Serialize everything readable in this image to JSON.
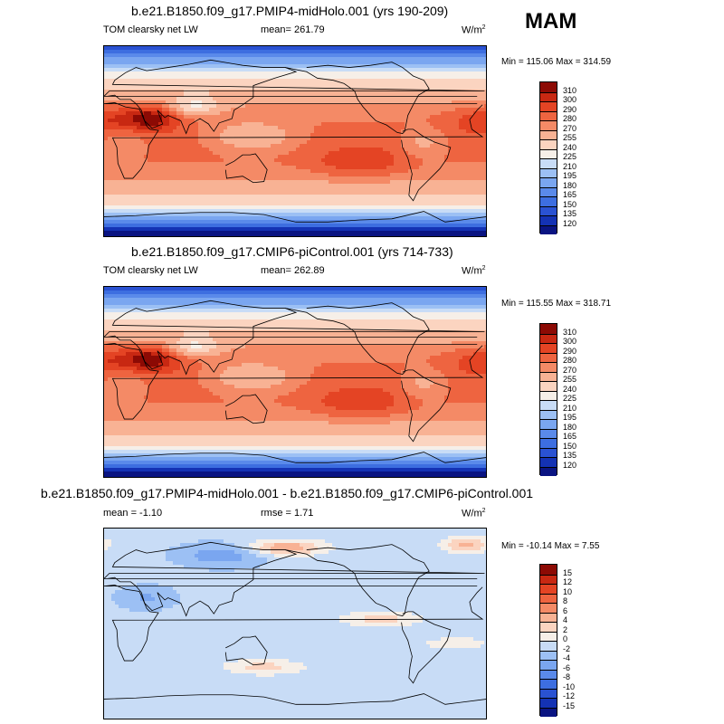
{
  "season": "MAM",
  "units_base": "W/m",
  "units_exp": "2",
  "panels": [
    {
      "title": "b.e21.B1850.f09_g17.PMIP4-midHolo.001 (yrs 190-209)",
      "left_label": "TOM clearsky net LW",
      "mid_label": "mean= 261.79",
      "minmax": "Min = 115.06 Max = 314.59"
    },
    {
      "title": "b.e21.B1850.f09_g17.CMIP6-piControl.001 (yrs 714-733)",
      "left_label": "TOM clearsky net LW",
      "mid_label": "mean= 262.89",
      "minmax": "Min = 115.55 Max = 318.71"
    },
    {
      "title": "b.e21.B1850.f09_g17.PMIP4-midHolo.001 - b.e21.B1850.f09_g17.CMIP6-piControl.001",
      "left_label": "mean = -1.10",
      "mid_label": "rmse = 1.71",
      "minmax": "Min = -10.14 Max = 7.55"
    }
  ],
  "chart_data": [
    {
      "type": "heatmap",
      "title": "b.e21.B1850.f09_g17.PMIP4-midHolo.001 (yrs 190-209)",
      "variable": "TOM clearsky net LW",
      "season": "MAM",
      "mean": 261.79,
      "min": 115.06,
      "max": 314.59,
      "colorbar_levels": [
        120,
        135,
        150,
        165,
        180,
        195,
        210,
        225,
        240,
        255,
        270,
        280,
        290,
        300,
        310
      ],
      "colorbar_colors": [
        "#0a1482",
        "#1432b4",
        "#2a52d2",
        "#3d6ee0",
        "#5a8aea",
        "#7aa6f0",
        "#9cc0f4",
        "#c8dcf6",
        "#f6efe8",
        "#fbd4c0",
        "#f8b294",
        "#f48a66",
        "#ee6440",
        "#e44424",
        "#c82812",
        "#8c0a04"
      ]
    },
    {
      "type": "heatmap",
      "title": "b.e21.B1850.f09_g17.CMIP6-piControl.001 (yrs 714-733)",
      "variable": "TOM clearsky net LW",
      "season": "MAM",
      "mean": 262.89,
      "min": 115.55,
      "max": 318.71,
      "colorbar_levels": [
        120,
        135,
        150,
        165,
        180,
        195,
        210,
        225,
        240,
        255,
        270,
        280,
        290,
        300,
        310
      ],
      "colorbar_colors": [
        "#0a1482",
        "#1432b4",
        "#2a52d2",
        "#3d6ee0",
        "#5a8aea",
        "#7aa6f0",
        "#9cc0f4",
        "#c8dcf6",
        "#f6efe8",
        "#fbd4c0",
        "#f8b294",
        "#f48a66",
        "#ee6440",
        "#e44424",
        "#c82812",
        "#8c0a04"
      ]
    },
    {
      "type": "heatmap",
      "title": "b.e21.B1850.f09_g17.PMIP4-midHolo.001 - b.e21.B1850.f09_g17.CMIP6-piControl.001",
      "season": "MAM",
      "mean": -1.1,
      "rmse": 1.71,
      "min": -10.14,
      "max": 7.55,
      "colorbar_levels": [
        -15,
        -12,
        -10,
        -8,
        -6,
        -4,
        -2,
        0,
        2,
        4,
        6,
        8,
        10,
        12,
        15
      ],
      "colorbar_colors": [
        "#0a1482",
        "#1432b4",
        "#2a52d2",
        "#3d6ee0",
        "#5a8aea",
        "#7aa6f0",
        "#9cc0f4",
        "#c8dcf6",
        "#f6efe8",
        "#fbd4c0",
        "#f8b294",
        "#f48a66",
        "#ee6440",
        "#e44424",
        "#c82812",
        "#8c0a04"
      ]
    }
  ]
}
